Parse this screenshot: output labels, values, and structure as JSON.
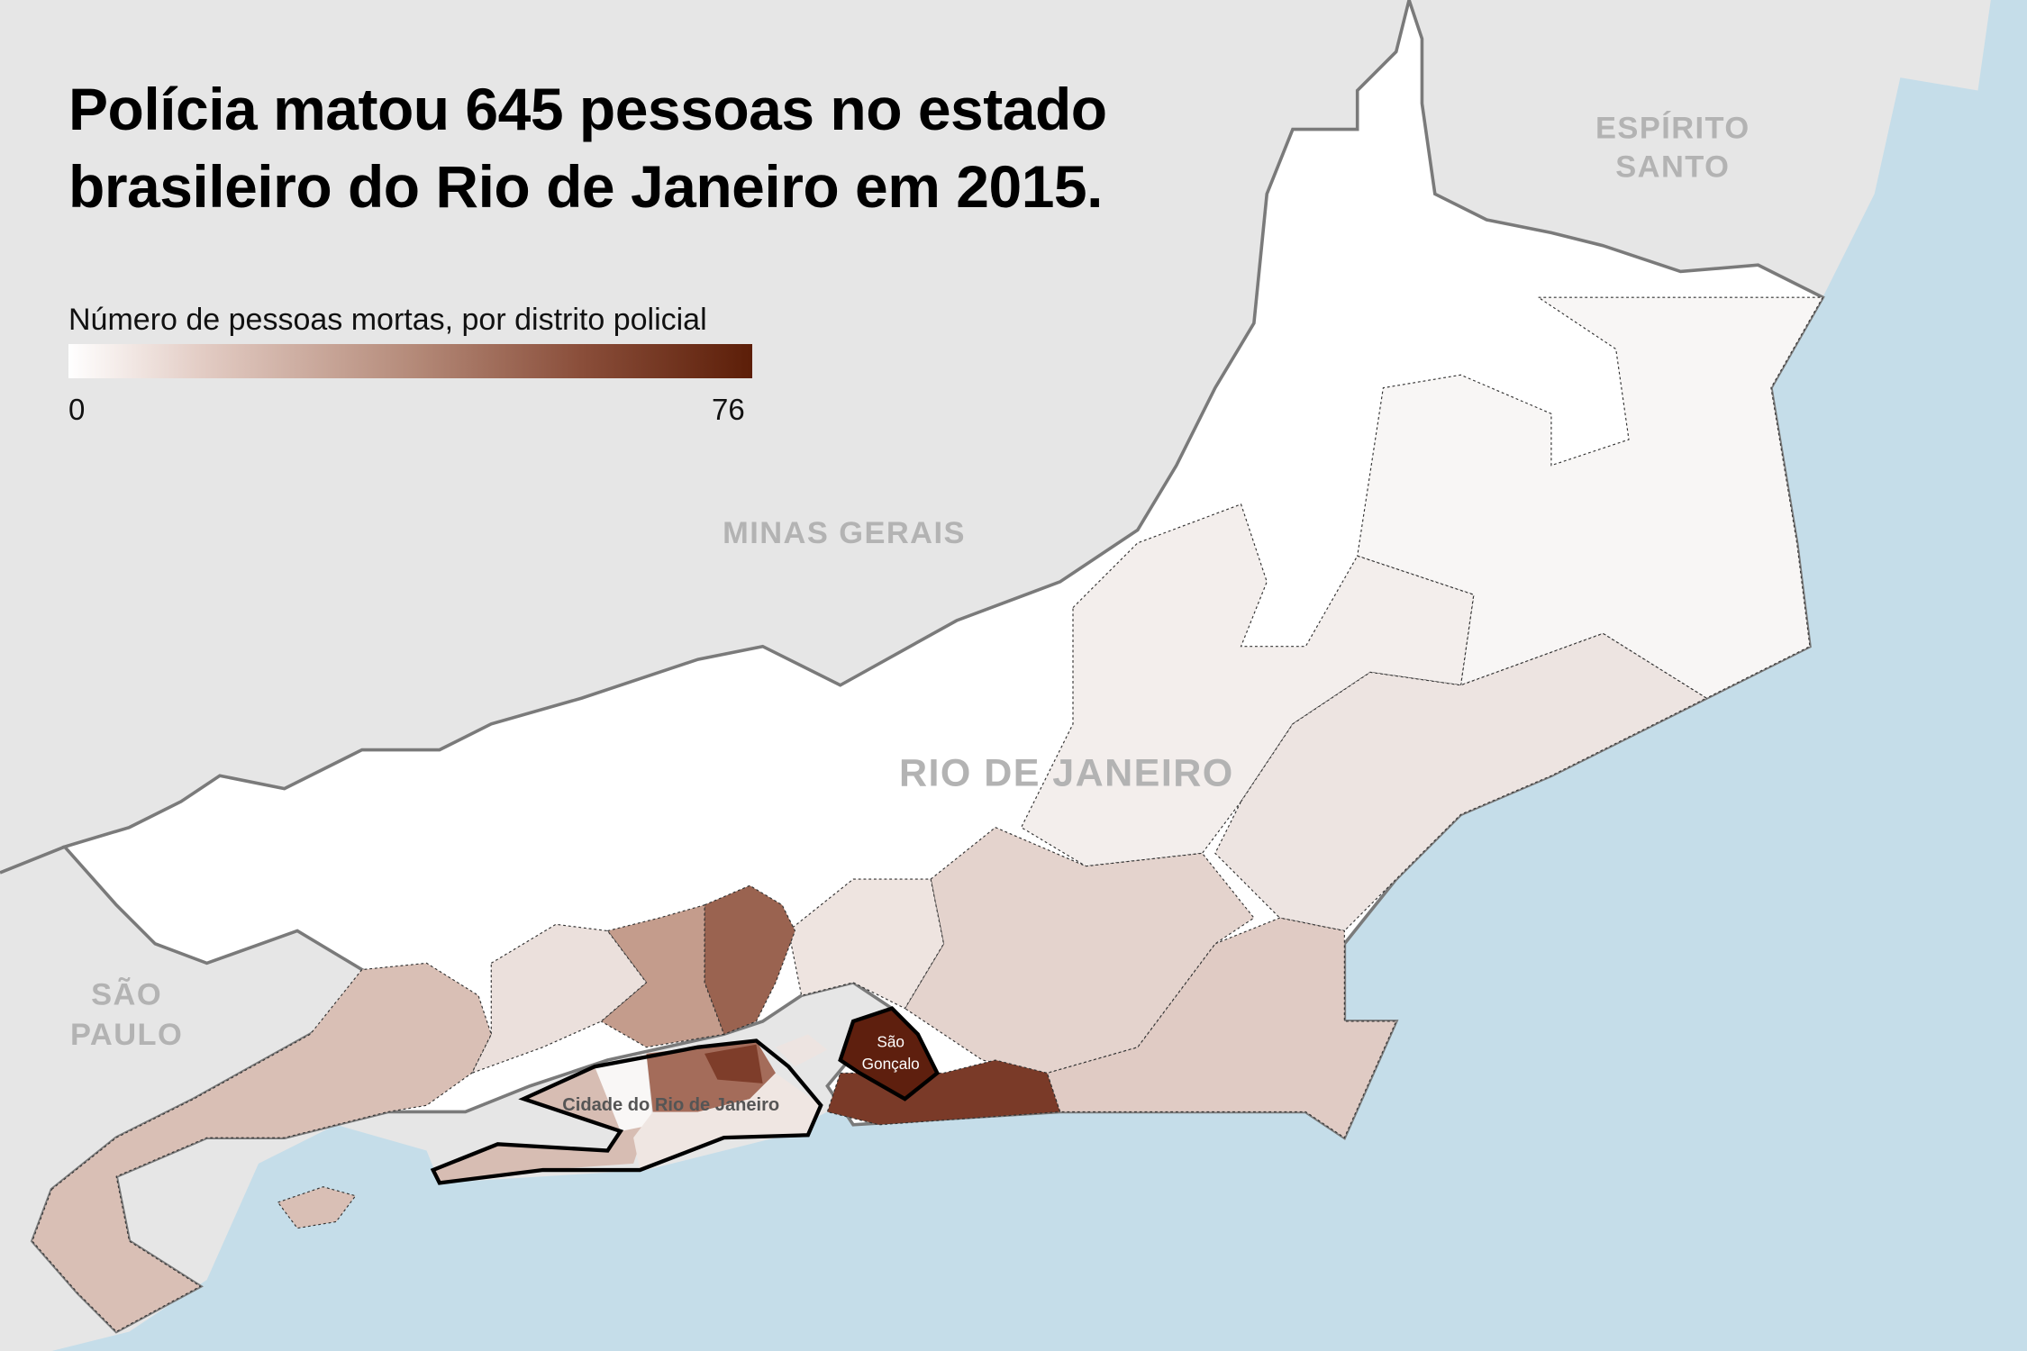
{
  "title": "Polícia matou 645 pessoas no estado brasileiro do Rio de Janeiro em 2015.",
  "title_lines": [
    "Polícia matou 645 pessoas no estado",
    "brasileiro do Rio de Janeiro em 2015."
  ],
  "legend": {
    "title": "Número de pessoas mortas, por distrito policial",
    "min": "0",
    "max": "76",
    "color_low": "#ffffff",
    "color_high": "#5c1e08"
  },
  "labels": {
    "minas_gerais": "MINAS GERAIS",
    "espirito_santo_1": "ESPÍRITO",
    "espirito_santo_2": "SANTO",
    "sao_paulo_1": "SÃO",
    "sao_paulo_2": "PAULO",
    "rio_de_janeiro": "RIO DE JANEIRO",
    "cidade_rio": "Cidade do Rio de Janeiro",
    "sao_goncalo_1": "São",
    "sao_goncalo_2": "Gonçalo"
  },
  "colors": {
    "other_states": "#e6e6e6",
    "sea": "#c5dde9",
    "border": "#7a7a7a"
  }
}
